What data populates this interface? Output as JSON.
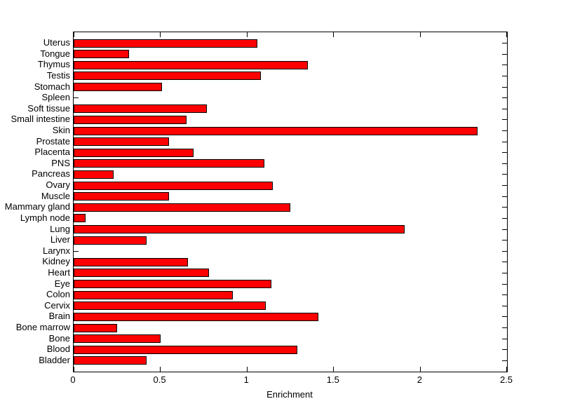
{
  "chart_data": {
    "type": "bar",
    "orientation": "horizontal",
    "title": "",
    "xlabel": "Enrichment",
    "categories": [
      "Uterus",
      "Tongue",
      "Thymus",
      "Testis",
      "Stomach",
      "Spleen",
      "Soft tissue",
      "Small intestine",
      "Skin",
      "Prostate",
      "Placenta",
      "PNS",
      "Pancreas",
      "Ovary",
      "Muscle",
      "Mammary gland",
      "Lymph node",
      "Lung",
      "Liver",
      "Larynx",
      "Kidney",
      "Heart",
      "Eye",
      "Colon",
      "Cervix",
      "Brain",
      "Bone marrow",
      "Bone",
      "Blood",
      "Bladder"
    ],
    "values": [
      1.06,
      0.32,
      1.35,
      1.08,
      0.51,
      0,
      0.77,
      0.65,
      2.33,
      0.55,
      0.69,
      1.1,
      0.23,
      1.15,
      0.55,
      1.25,
      0.07,
      1.91,
      0.42,
      0,
      0.66,
      0.78,
      1.14,
      0.92,
      1.11,
      1.41,
      0.25,
      0.5,
      1.29,
      0.42
    ],
    "xlim": [
      0,
      2.5
    ],
    "xticks": [
      0,
      0.5,
      1,
      1.5,
      2,
      2.5
    ],
    "xtick_labels": [
      "0",
      "0.5",
      "1",
      "1.5",
      "2",
      "2.5"
    ],
    "legend": null,
    "grid": false,
    "bar_color": "#ff0000",
    "bar_edge_color": "#000000",
    "axis_color": "#000000",
    "background_color": "#ffffff"
  }
}
